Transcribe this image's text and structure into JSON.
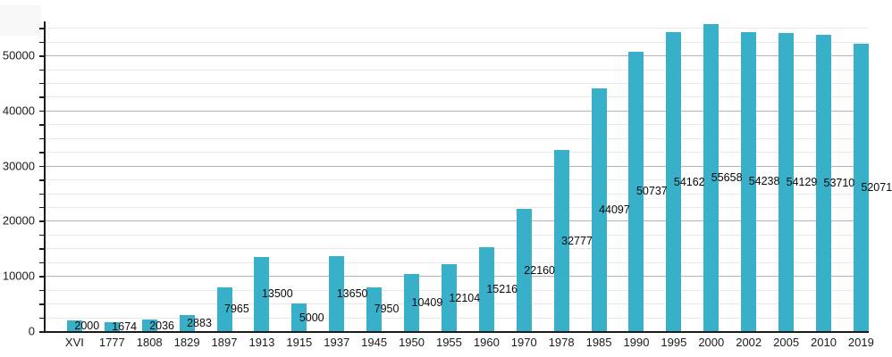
{
  "chart_data": {
    "type": "bar",
    "title": "",
    "xlabel": "",
    "ylabel": "",
    "legend": "none",
    "grid": "horizontal major+minor",
    "categories": [
      "XVI",
      "1777",
      "1808",
      "1829",
      "1897",
      "1913",
      "1915",
      "1937",
      "1945",
      "1950",
      "1955",
      "1960",
      "1970",
      "1978",
      "1985",
      "1990",
      "1995",
      "2000",
      "2002",
      "2005",
      "2010",
      "2019"
    ],
    "values": [
      2000,
      1674,
      2036,
      2883,
      7965,
      13500,
      5000,
      13650,
      7950,
      10409,
      12104,
      15216,
      22160,
      32777,
      44097,
      50737,
      54162,
      55658,
      54238,
      54129,
      53710,
      52071
    ],
    "value_labels": [
      "2000",
      "1674",
      "2036",
      "2883",
      "7965",
      "13500",
      "5000",
      "13650",
      "7950",
      "10409",
      "12104",
      "15216",
      "22160",
      "32777",
      "44097",
      "50737",
      "54162",
      "55658",
      "54238",
      "54129",
      "53710",
      "52071"
    ],
    "ylim": [
      0,
      56000
    ],
    "y_major_ticks": [
      0,
      10000,
      20000,
      30000,
      40000,
      50000
    ],
    "y_major_tick_labels": [
      "0",
      "10000",
      "20000",
      "30000",
      "40000",
      "50000"
    ],
    "y_minor_step": 2500,
    "y_minor_max": 55000,
    "colors": {
      "bar": "#39b0c9",
      "axis": "#1a1a1a",
      "grid_major": "#b3b3b3",
      "grid_minor": "#e9e9e9",
      "text": "#1a1a1a"
    }
  }
}
